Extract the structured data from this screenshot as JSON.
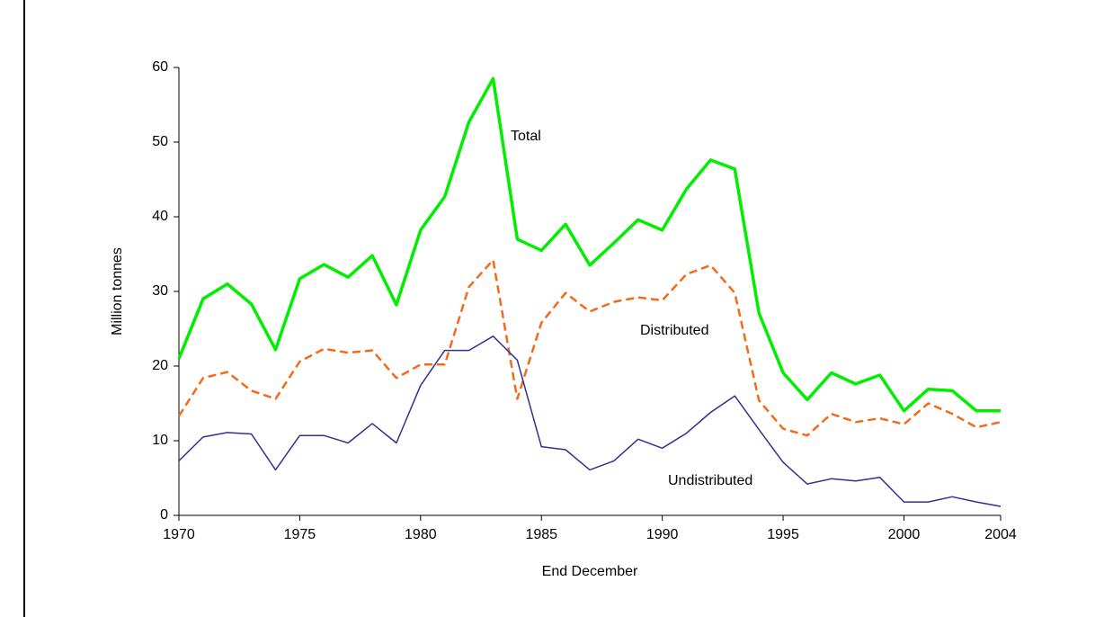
{
  "chart_data": {
    "type": "line",
    "x_label": "End December",
    "y_label": "Million tonnes",
    "x": [
      1970,
      1971,
      1972,
      1973,
      1974,
      1975,
      1976,
      1977,
      1978,
      1979,
      1980,
      1981,
      1982,
      1983,
      1984,
      1985,
      1986,
      1987,
      1988,
      1989,
      1990,
      1991,
      1992,
      1993,
      1994,
      1995,
      1996,
      1997,
      1998,
      1999,
      2000,
      2001,
      2002,
      2003,
      2004
    ],
    "series": [
      {
        "name": "Total",
        "color": "#00ee00",
        "values": [
          21,
          29,
          31,
          28.3,
          22.2,
          31.7,
          33.6,
          31.9,
          34.8,
          28.2,
          38.2,
          42.7,
          52.7,
          58.5,
          37,
          35.5,
          39,
          33.5,
          36.5,
          39.6,
          38.2,
          43.7,
          47.6,
          46.4,
          27.1,
          19.1,
          15.5,
          19.1,
          17.6,
          18.8,
          14,
          16.9,
          16.7,
          14,
          14
        ]
      },
      {
        "name": "Distributed",
        "color": "#f26b1d",
        "values": [
          13.3,
          18.4,
          19.2,
          16.7,
          15.6,
          20.6,
          22.3,
          21.8,
          22.1,
          18.4,
          20.2,
          20.2,
          30.6,
          34.2,
          15.6,
          25.8,
          29.8,
          27.3,
          28.6,
          29.2,
          28.8,
          32.3,
          33.5,
          29.8,
          15.4,
          11.6,
          10.7,
          13.6,
          12.5,
          13,
          12.2,
          15,
          13.6,
          11.8,
          12.5
        ]
      },
      {
        "name": "Undistributed",
        "color": "#2e3192",
        "values": [
          7.3,
          10.5,
          11.1,
          10.9,
          6.1,
          10.7,
          10.7,
          9.7,
          12.3,
          9.7,
          17.4,
          22.1,
          22.1,
          24,
          20.8,
          9.2,
          8.8,
          6.1,
          7.3,
          10.2,
          9,
          11,
          13.8,
          16,
          11.5,
          7.1,
          4.2,
          4.9,
          4.6,
          5.1,
          1.8,
          1.8,
          2.5,
          1.8,
          1.2
        ]
      }
    ],
    "xlim": [
      1970,
      2004
    ],
    "xticks": [
      1970,
      1975,
      1980,
      1985,
      1990,
      1995,
      2000,
      2004
    ],
    "ylim": [
      0,
      60
    ],
    "yticks": [
      0,
      10,
      20,
      30,
      40,
      50,
      60
    ]
  }
}
